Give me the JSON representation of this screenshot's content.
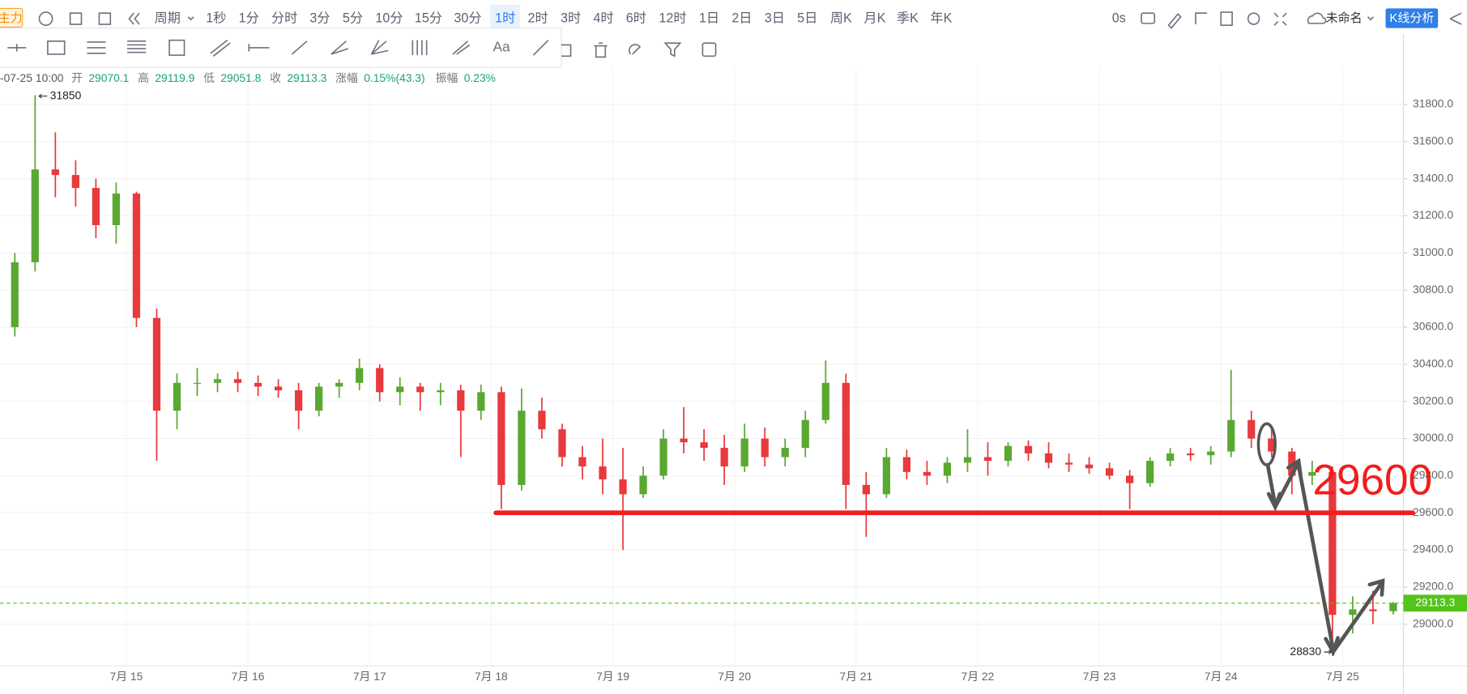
{
  "toolbar": {
    "indicator": "主力",
    "period": "周期",
    "intervals": [
      "1秒",
      "1分",
      "分时",
      "3分",
      "5分",
      "10分",
      "15分",
      "30分",
      "1时",
      "2时",
      "3时",
      "4时",
      "6时",
      "12时",
      "1日",
      "2日",
      "3日",
      "5日",
      "周K",
      "月K",
      "季K",
      "年K"
    ],
    "active_index": 8,
    "refresh": "0s",
    "workspace": "未命名",
    "analysis_button": "K线分析"
  },
  "drawing_tools": {
    "text_tool": "Aa"
  },
  "chart_data": {
    "type": "candlestick",
    "info": {
      "time": "-07-25 10:00",
      "open_label": "开",
      "open": 29070.1,
      "high_label": "高",
      "high": 29119.9,
      "low_label": "低",
      "low": 29051.8,
      "close_label": "收",
      "close": 29113.3,
      "change_label": "涨幅",
      "change": "0.15%(43.3)",
      "amplitude_label": "振幅",
      "amplitude": "0.23%"
    },
    "categories": [
      null,
      null,
      null,
      null,
      null,
      null,
      "7月 15",
      null,
      null,
      null,
      null,
      null,
      "7月 16",
      null,
      null,
      null,
      null,
      null,
      "7月 17",
      null,
      null,
      null,
      null,
      null,
      "7月 18",
      null,
      null,
      null,
      null,
      null,
      "7月 19",
      null,
      null,
      null,
      null,
      null,
      "7月 20",
      null,
      null,
      null,
      null,
      null,
      "7月 21",
      null,
      null,
      null,
      null,
      null,
      "7月 22",
      null,
      null,
      null,
      null,
      null,
      "7月 23",
      null,
      null,
      null,
      null,
      null,
      "7月 24",
      null,
      null,
      null,
      null,
      null,
      "7月 25",
      null,
      null
    ],
    "open": [
      30600,
      30950,
      31450,
      31420,
      31350,
      31150,
      31320,
      30650,
      30150,
      30300,
      30300,
      30320,
      30300,
      30280,
      30260,
      30150,
      30280,
      30300,
      30380,
      30250,
      30280,
      30250,
      30260,
      30150,
      30250,
      29750,
      30150,
      30050,
      29900,
      29850,
      29780,
      29700,
      29800,
      30000,
      29980,
      29950,
      29850,
      30000,
      29900,
      29950,
      30100,
      30300,
      29750,
      29700,
      29900,
      29820,
      29800,
      29870,
      29900,
      29880,
      29960,
      29920,
      29870,
      29860,
      29840,
      29800,
      29760,
      29880,
      29920,
      29910,
      29930,
      30100,
      30000,
      29930,
      29800,
      29820,
      29050,
      29080,
      29070.1
    ],
    "high": [
      31000,
      31850,
      31650,
      31500,
      31400,
      31380,
      31330,
      30700,
      30350,
      30380,
      30350,
      30360,
      30340,
      30320,
      30300,
      30300,
      30320,
      30430,
      30400,
      30330,
      30300,
      30300,
      30290,
      30290,
      30280,
      30270,
      30220,
      30080,
      29960,
      30000,
      29950,
      29850,
      30050,
      30170,
      30050,
      30020,
      30080,
      30060,
      30000,
      30150,
      30420,
      30350,
      29820,
      29950,
      29940,
      29880,
      29900,
      30050,
      29980,
      29980,
      29990,
      29980,
      29920,
      29900,
      29870,
      29830,
      29900,
      29950,
      29950,
      29960,
      30370,
      30150,
      30070,
      29950,
      29880,
      29850,
      29150,
      29180,
      29119.9
    ],
    "low": [
      30550,
      30900,
      31300,
      31250,
      31080,
      31050,
      30600,
      29880,
      30050,
      30230,
      30250,
      30250,
      30230,
      30220,
      30050,
      30120,
      30220,
      30260,
      30200,
      30180,
      30150,
      30180,
      29900,
      30100,
      29620,
      29720,
      30000,
      29850,
      29780,
      29700,
      29400,
      29680,
      29780,
      29920,
      29880,
      29750,
      29820,
      29850,
      29850,
      29900,
      30080,
      29620,
      29470,
      29680,
      29780,
      29750,
      29760,
      29820,
      29800,
      29850,
      29880,
      29840,
      29820,
      29810,
      29780,
      29620,
      29740,
      29850,
      29880,
      29860,
      29900,
      29950,
      29900,
      29700,
      29750,
      28830,
      28950,
      29000,
      29051.8
    ],
    "close": [
      30950,
      31450,
      31420,
      31350,
      31150,
      31320,
      30650,
      30150,
      30300,
      30300,
      30320,
      30300,
      30280,
      30260,
      30150,
      30280,
      30300,
      30380,
      30250,
      30280,
      30250,
      30260,
      30150,
      30250,
      29750,
      30150,
      30050,
      29900,
      29850,
      29780,
      29700,
      29800,
      30000,
      29980,
      29950,
      29850,
      30000,
      29900,
      29950,
      30100,
      30300,
      29750,
      29700,
      29900,
      29820,
      29800,
      29870,
      29900,
      29880,
      29960,
      29920,
      29870,
      29860,
      29840,
      29800,
      29760,
      29880,
      29920,
      29910,
      29930,
      30100,
      30000,
      29930,
      29800,
      29820,
      29050,
      29080,
      29070,
      29113.3
    ],
    "up_color": "#5aa832",
    "down_color": "#e8393c",
    "ylim": [
      28775,
      32000
    ],
    "yticks": [
      {
        "value": 29000,
        "label": "29000.0"
      },
      {
        "value": 29200,
        "label": "29200.0"
      },
      {
        "value": 29400,
        "label": "29400.0"
      },
      {
        "value": 29600,
        "label": "29600.0"
      },
      {
        "value": 29800,
        "label": "29800.0"
      },
      {
        "value": 30000,
        "label": "30000.0"
      },
      {
        "value": 30200,
        "label": "30200.0"
      },
      {
        "value": 30400,
        "label": "30400.0"
      },
      {
        "value": 30600,
        "label": "30600.0"
      },
      {
        "value": 30800,
        "label": "30800.0"
      },
      {
        "value": 31000,
        "label": "31000.0"
      },
      {
        "value": 31200,
        "label": "31200.0"
      },
      {
        "value": 31400,
        "label": "31400.0"
      },
      {
        "value": 31600,
        "label": "31600.0"
      },
      {
        "value": 31800,
        "label": "31800.0"
      }
    ],
    "grid": true,
    "last_price": 29113.3,
    "last_price_color": "#52c41a",
    "max_marker": 31850,
    "min_marker": 28830,
    "support_level": 29600,
    "support_color": "#f21d1d"
  }
}
